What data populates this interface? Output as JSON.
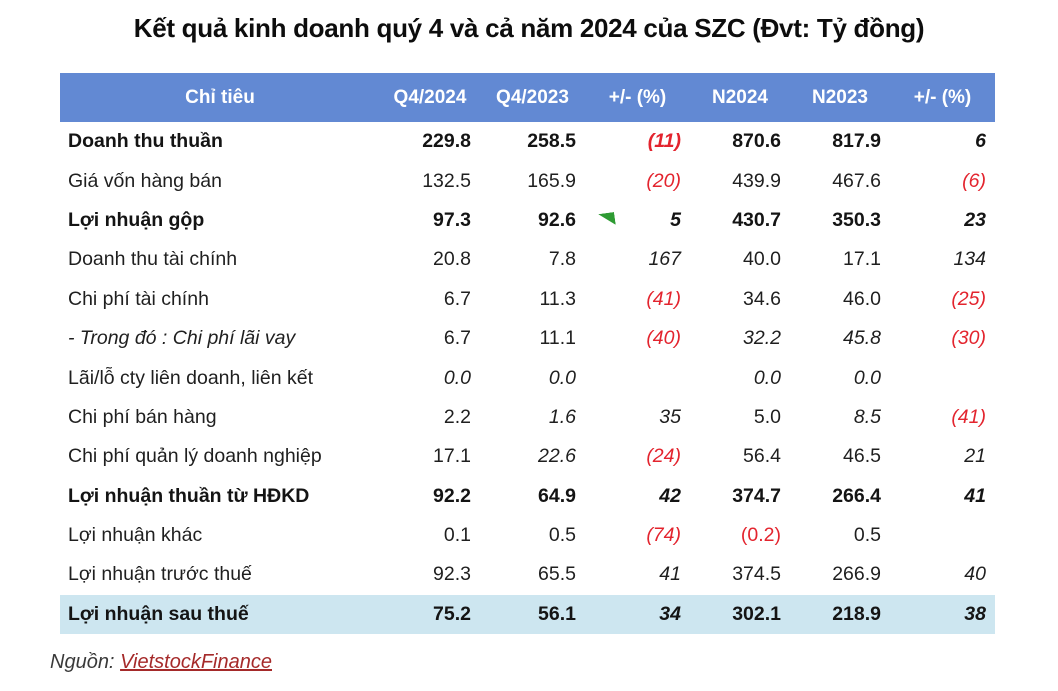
{
  "title": "Kết quả kinh doanh quý 4 và cả năm 2024 của SZC (Đvt: Tỷ đồng)",
  "colors": {
    "header_bg": "#6289d3",
    "header_text": "#ffffff",
    "highlight_row_bg": "#cde6f0",
    "negative_red": "#e3242e",
    "link_red": "#a52a2a",
    "flag_green": "#2e9b33"
  },
  "icons": {
    "gross_profit_marker": "green-corner-triangle-icon"
  },
  "table": {
    "headers": [
      "Chỉ tiêu",
      "Q4/2024",
      "Q4/2023",
      "+/- (%)",
      "N2024",
      "N2023",
      "+/- (%)"
    ],
    "rows": [
      {
        "label": "Doanh thu thuần",
        "cells": [
          "229.8",
          "258.5",
          "(11)",
          "870.6",
          "817.9",
          "6"
        ]
      },
      {
        "label": "Giá vốn hàng bán",
        "cells": [
          "132.5",
          "165.9",
          "(20)",
          "439.9",
          "467.6",
          "(6)"
        ]
      },
      {
        "label": "Lợi nhuận gộp",
        "cells": [
          "97.3",
          "92.6",
          "5",
          "430.7",
          "350.3",
          "23"
        ]
      },
      {
        "label": "Doanh thu tài chính",
        "cells": [
          "20.8",
          "7.8",
          "167",
          "40.0",
          "17.1",
          "134"
        ]
      },
      {
        "label": "Chi phí tài chính",
        "cells": [
          "6.7",
          "11.3",
          "(41)",
          "34.6",
          "46.0",
          "(25)"
        ]
      },
      {
        "label": "- Trong đó : Chi phí lãi vay",
        "cells": [
          "6.7",
          "11.1",
          "(40)",
          "32.2",
          "45.8",
          "(30)"
        ]
      },
      {
        "label": "Lãi/lỗ cty liên doanh, liên kết",
        "cells": [
          "0.0",
          "0.0",
          "",
          "0.0",
          "0.0",
          ""
        ]
      },
      {
        "label": "Chi phí bán hàng",
        "cells": [
          "2.2",
          "1.6",
          "35",
          "5.0",
          "8.5",
          "(41)"
        ]
      },
      {
        "label": "Chi phí quản lý doanh nghiệp",
        "cells": [
          "17.1",
          "22.6",
          "(24)",
          "56.4",
          "46.5",
          "21"
        ]
      },
      {
        "label": "Lợi nhuận thuần từ HĐKD",
        "cells": [
          "92.2",
          "64.9",
          "42",
          "374.7",
          "266.4",
          "41"
        ]
      },
      {
        "label": "Lợi nhuận khác",
        "cells": [
          "0.1",
          "0.5",
          "(74)",
          "(0.2)",
          "0.5",
          ""
        ]
      },
      {
        "label": "Lợi nhuận trước thuế",
        "cells": [
          "92.3",
          "65.5",
          "41",
          "374.5",
          "266.9",
          "40"
        ]
      },
      {
        "label": "Lợi nhuận sau thuế",
        "cells": [
          "75.2",
          "56.1",
          "34",
          "302.1",
          "218.9",
          "38"
        ]
      }
    ]
  },
  "source": {
    "prefix": "Nguồn: ",
    "link_label": "VietstockFinance"
  }
}
